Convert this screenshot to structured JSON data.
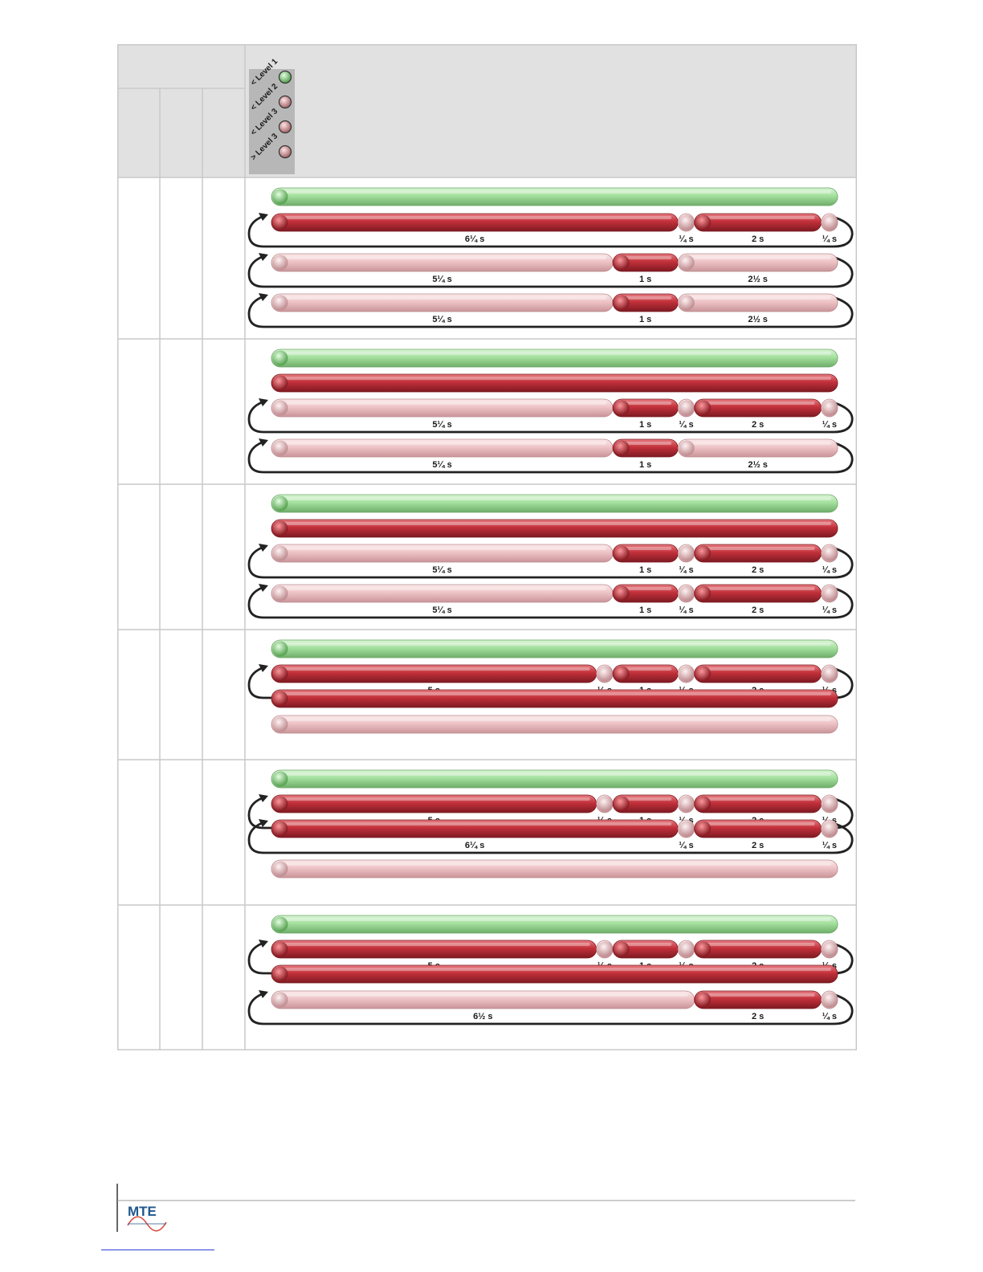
{
  "header": {
    "led_labels": [
      "< Level 1",
      "< Level 2",
      "< Level 3",
      "> Level 3"
    ],
    "led_colors": [
      "green",
      "pink",
      "pink",
      "pink"
    ]
  },
  "colors": {
    "green": "#9fdc9b",
    "red": "#c8323c",
    "pink": "#efc6c9",
    "header_bg": "#e1e1e1",
    "grid": "#c9c9c9"
  },
  "rows": [
    {
      "tracks": [
        {
          "loop": false,
          "segments": [
            {
              "c": "green",
              "w": 100,
              "label": ""
            }
          ]
        },
        {
          "loop": true,
          "segments": [
            {
              "c": "red",
              "w": 71.8,
              "label": "6¼ s"
            },
            {
              "c": "pink",
              "w": 2.9,
              "label": "¼ s"
            },
            {
              "c": "red",
              "w": 22.4,
              "label": "2 s"
            },
            {
              "c": "pink",
              "w": 2.9,
              "label": "¼ s"
            }
          ]
        },
        {
          "loop": true,
          "segments": [
            {
              "c": "pink",
              "w": 60.3,
              "label": "5¼ s"
            },
            {
              "c": "red",
              "w": 11.5,
              "label": "1 s"
            },
            {
              "c": "pink",
              "w": 28.2,
              "label": "2½ s"
            }
          ]
        },
        {
          "loop": true,
          "segments": [
            {
              "c": "pink",
              "w": 60.3,
              "label": "5¼ s"
            },
            {
              "c": "red",
              "w": 11.5,
              "label": "1 s"
            },
            {
              "c": "pink",
              "w": 28.2,
              "label": "2½ s"
            }
          ]
        }
      ]
    },
    {
      "tracks": [
        {
          "loop": false,
          "segments": [
            {
              "c": "green",
              "w": 100,
              "label": ""
            }
          ]
        },
        {
          "loop": false,
          "segments": [
            {
              "c": "red",
              "w": 100,
              "label": ""
            }
          ]
        },
        {
          "loop": true,
          "segments": [
            {
              "c": "pink",
              "w": 60.3,
              "label": "5¼ s"
            },
            {
              "c": "red",
              "w": 11.5,
              "label": "1 s"
            },
            {
              "c": "pink",
              "w": 2.9,
              "label": "¼ s"
            },
            {
              "c": "red",
              "w": 22.4,
              "label": "2 s"
            },
            {
              "c": "pink",
              "w": 2.9,
              "label": "¼ s"
            }
          ]
        },
        {
          "loop": true,
          "segments": [
            {
              "c": "pink",
              "w": 60.3,
              "label": "5¼ s"
            },
            {
              "c": "red",
              "w": 11.5,
              "label": "1 s"
            },
            {
              "c": "pink",
              "w": 28.2,
              "label": "2½ s"
            }
          ]
        }
      ]
    },
    {
      "tracks": [
        {
          "loop": false,
          "segments": [
            {
              "c": "green",
              "w": 100,
              "label": ""
            }
          ]
        },
        {
          "loop": false,
          "segments": [
            {
              "c": "red",
              "w": 100,
              "label": ""
            }
          ]
        },
        {
          "loop": true,
          "segments": [
            {
              "c": "pink",
              "w": 60.3,
              "label": "5¼ s"
            },
            {
              "c": "red",
              "w": 11.5,
              "label": "1 s"
            },
            {
              "c": "pink",
              "w": 2.9,
              "label": "¼ s"
            },
            {
              "c": "red",
              "w": 22.4,
              "label": "2 s"
            },
            {
              "c": "pink",
              "w": 2.9,
              "label": "¼ s"
            }
          ]
        },
        {
          "loop": true,
          "segments": [
            {
              "c": "pink",
              "w": 60.3,
              "label": "5¼ s"
            },
            {
              "c": "red",
              "w": 11.5,
              "label": "1 s"
            },
            {
              "c": "pink",
              "w": 2.9,
              "label": "¼ s"
            },
            {
              "c": "red",
              "w": 22.4,
              "label": "2 s"
            },
            {
              "c": "pink",
              "w": 2.9,
              "label": "¼ s"
            }
          ]
        }
      ]
    },
    {
      "tracks": [
        {
          "loop": false,
          "segments": [
            {
              "c": "green",
              "w": 100,
              "label": ""
            }
          ]
        },
        {
          "loop": true,
          "segments": [
            {
              "c": "red",
              "w": 57.4,
              "label": "5 s"
            },
            {
              "c": "pink",
              "w": 2.9,
              "label": "¼ s"
            },
            {
              "c": "red",
              "w": 11.5,
              "label": "1 s"
            },
            {
              "c": "pink",
              "w": 2.9,
              "label": "¼ s"
            },
            {
              "c": "red",
              "w": 22.4,
              "label": "2 s"
            },
            {
              "c": "pink",
              "w": 2.9,
              "label": "¼ s"
            }
          ]
        },
        {
          "loop": false,
          "segments": [
            {
              "c": "red",
              "w": 100,
              "label": ""
            }
          ]
        },
        {
          "loop": false,
          "segments": [
            {
              "c": "pink",
              "w": 100,
              "label": ""
            }
          ]
        }
      ]
    },
    {
      "tracks": [
        {
          "loop": false,
          "segments": [
            {
              "c": "green",
              "w": 100,
              "label": ""
            }
          ]
        },
        {
          "loop": true,
          "segments": [
            {
              "c": "red",
              "w": 57.4,
              "label": "5 s"
            },
            {
              "c": "pink",
              "w": 2.9,
              "label": "¼ s"
            },
            {
              "c": "red",
              "w": 11.5,
              "label": "1 s"
            },
            {
              "c": "pink",
              "w": 2.9,
              "label": "¼ s"
            },
            {
              "c": "red",
              "w": 22.4,
              "label": "2 s"
            },
            {
              "c": "pink",
              "w": 2.9,
              "label": "¼ s"
            }
          ]
        },
        {
          "loop": true,
          "segments": [
            {
              "c": "red",
              "w": 71.8,
              "label": "6¼ s"
            },
            {
              "c": "pink",
              "w": 2.9,
              "label": "¼ s"
            },
            {
              "c": "red",
              "w": 22.4,
              "label": "2 s"
            },
            {
              "c": "pink",
              "w": 2.9,
              "label": "¼ s"
            }
          ]
        },
        {
          "loop": false,
          "segments": [
            {
              "c": "pink",
              "w": 100,
              "label": ""
            }
          ]
        }
      ]
    },
    {
      "tracks": [
        {
          "loop": false,
          "segments": [
            {
              "c": "green",
              "w": 100,
              "label": ""
            }
          ]
        },
        {
          "loop": true,
          "segments": [
            {
              "c": "red",
              "w": 57.4,
              "label": "5 s"
            },
            {
              "c": "pink",
              "w": 2.9,
              "label": "¼ s"
            },
            {
              "c": "red",
              "w": 11.5,
              "label": "1 s"
            },
            {
              "c": "pink",
              "w": 2.9,
              "label": "¼ s"
            },
            {
              "c": "red",
              "w": 22.4,
              "label": "2 s"
            },
            {
              "c": "pink",
              "w": 2.9,
              "label": "¼ s"
            }
          ]
        },
        {
          "loop": false,
          "segments": [
            {
              "c": "red",
              "w": 100,
              "label": ""
            }
          ]
        },
        {
          "loop": true,
          "segments": [
            {
              "c": "pink",
              "w": 74.7,
              "label": "6½ s"
            },
            {
              "c": "red",
              "w": 22.4,
              "label": "2 s"
            },
            {
              "c": "pink",
              "w": 2.9,
              "label": "¼ s"
            }
          ]
        }
      ]
    }
  ],
  "footer": {
    "logo_text": "MTE"
  }
}
